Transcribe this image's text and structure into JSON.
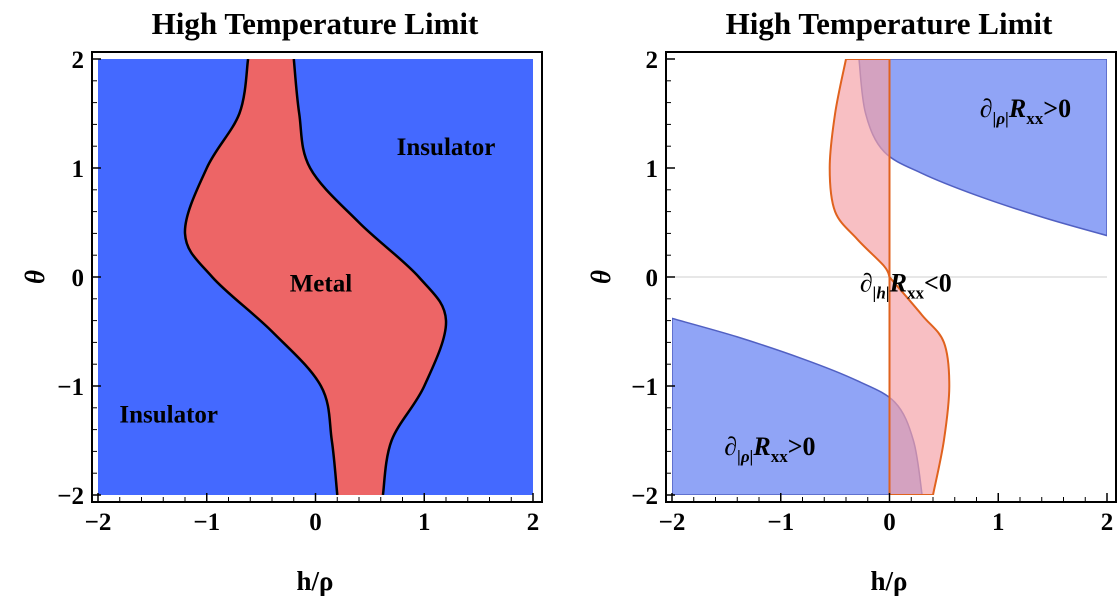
{
  "chart_data": [
    {
      "type": "area",
      "title": "High Temperature Limit",
      "xlabel": "h/ρ",
      "ylabel": "θ",
      "xlim": [
        -2,
        2
      ],
      "ylim": [
        -2,
        2
      ],
      "xticks": [
        "−2",
        "−1",
        "0",
        "1",
        "2"
      ],
      "yticks": [
        "2",
        "1",
        "0",
        "−1",
        "−2"
      ],
      "grid": false,
      "colors": {
        "insulator": "#4469ff",
        "metal": "#ed6566",
        "boundary": "#000000"
      },
      "series": [
        {
          "name": "Metal",
          "left_boundary": [
            [
              -0.62,
              2
            ],
            [
              -0.7,
              1.5
            ],
            [
              -1.0,
              1.0
            ],
            [
              -1.2,
              0.4
            ],
            [
              -0.95,
              0.0
            ],
            [
              -0.4,
              -0.5
            ],
            [
              0.05,
              -1.0
            ],
            [
              0.15,
              -1.5
            ],
            [
              0.2,
              -2
            ]
          ],
          "right_boundary": [
            [
              -0.2,
              2
            ],
            [
              -0.15,
              1.5
            ],
            [
              -0.05,
              1.0
            ],
            [
              0.4,
              0.5
            ],
            [
              0.95,
              0.0
            ],
            [
              1.2,
              -0.4
            ],
            [
              1.0,
              -1.0
            ],
            [
              0.7,
              -1.5
            ],
            [
              0.62,
              -2
            ]
          ]
        }
      ],
      "labels": [
        {
          "text": "Insulator",
          "x": 1.2,
          "y": 1.2
        },
        {
          "text": "Metal",
          "x": 0.05,
          "y": -0.05
        },
        {
          "text": "Insulator",
          "x": -1.35,
          "y": -1.25
        }
      ]
    },
    {
      "type": "area",
      "title": "High Temperature Limit",
      "xlabel": "h/ρ",
      "ylabel": "θ",
      "xlim": [
        -2,
        2
      ],
      "ylim": [
        -2,
        2
      ],
      "xticks": [
        "−2",
        "−1",
        "0",
        "1",
        "2"
      ],
      "yticks": [
        "2",
        "1",
        "0",
        "−1",
        "−2"
      ],
      "grid": true,
      "colors": {
        "blue_fill": "#4c6cf0",
        "blue_edge": "#5160c2",
        "red_fill": "#f5a0a6",
        "red_edge": "#e0621e"
      },
      "series": [
        {
          "name": "∂|ρ|Rxx>0",
          "upper_region_boundary": [
            [
              -0.28,
              2
            ],
            [
              -0.22,
              1.5
            ],
            [
              -0.05,
              1.15
            ],
            [
              0.3,
              0.95
            ],
            [
              0.8,
              0.75
            ],
            [
              1.4,
              0.55
            ],
            [
              2.0,
              0.38
            ]
          ],
          "lower_region_boundary": [
            [
              -2.0,
              -0.38
            ],
            [
              -1.4,
              -0.55
            ],
            [
              -0.8,
              -0.75
            ],
            [
              -0.3,
              -0.95
            ],
            [
              0.05,
              -1.15
            ],
            [
              0.22,
              -1.5
            ],
            [
              0.3,
              -2.0
            ]
          ]
        },
        {
          "name": "∂|h|Rxx<0",
          "upper_lobe_boundary": [
            [
              -0.4,
              2
            ],
            [
              -0.5,
              1.5
            ],
            [
              -0.55,
              1.0
            ],
            [
              -0.5,
              0.6
            ],
            [
              -0.3,
              0.35
            ],
            [
              -0.05,
              0.1
            ],
            [
              0,
              0
            ]
          ],
          "lower_lobe_boundary": [
            [
              0,
              0
            ],
            [
              0.3,
              -0.35
            ],
            [
              0.5,
              -0.6
            ],
            [
              0.55,
              -1.0
            ],
            [
              0.5,
              -1.5
            ],
            [
              0.4,
              -2
            ]
          ]
        }
      ],
      "labels": [
        {
          "d": "∂",
          "sub": "|ρ|",
          "r": "R",
          "rsub": "xx",
          "op": ">0",
          "x": 1.25,
          "y": 1.55
        },
        {
          "d": "∂",
          "sub": "|h|",
          "r": "R",
          "rsub": "xx",
          "op": "<0",
          "x": 0.15,
          "y": -0.05
        },
        {
          "d": "∂",
          "sub": "|ρ|",
          "r": "R",
          "rsub": "xx",
          "op": ">0",
          "x": -1.1,
          "y": -1.55
        }
      ]
    }
  ]
}
